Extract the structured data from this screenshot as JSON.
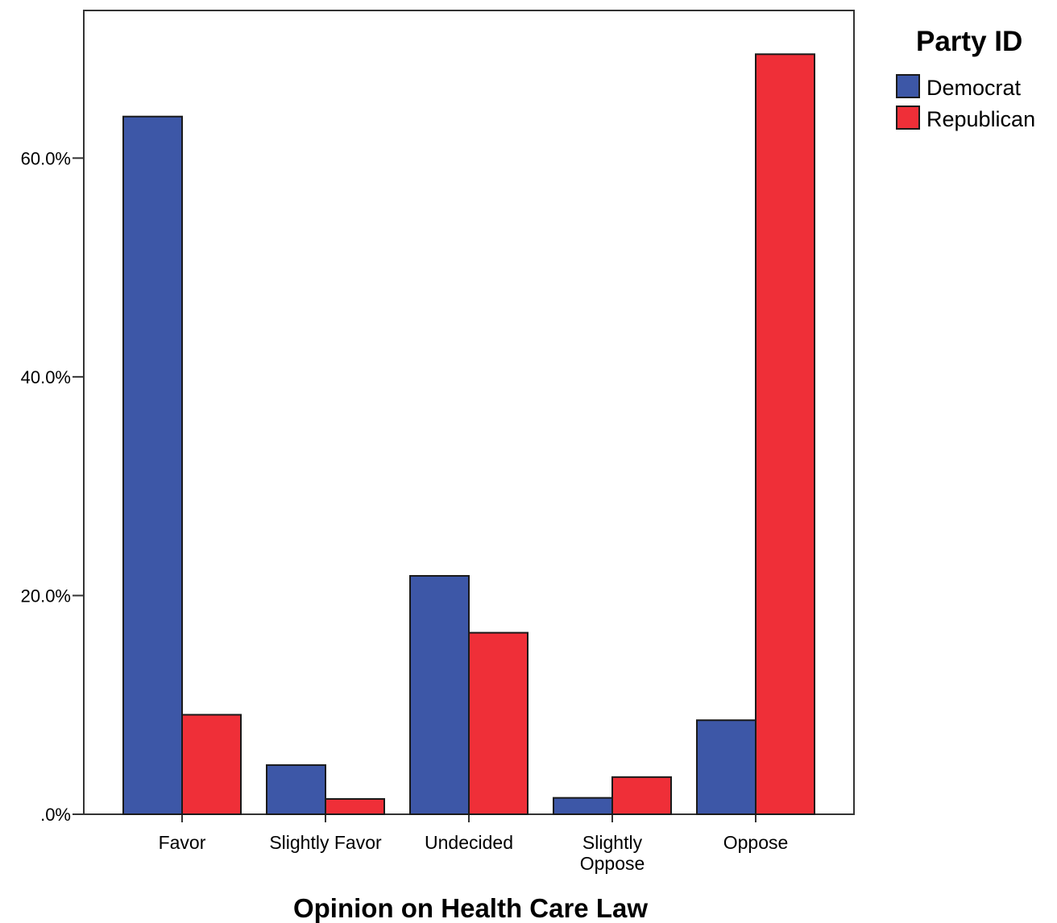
{
  "chart_data": {
    "type": "bar",
    "categories": [
      "Favor",
      "Slightly Favor",
      "Undecided",
      "Slightly Oppose",
      "Oppose"
    ],
    "category_display": [
      [
        "Favor"
      ],
      [
        "Slightly Favor"
      ],
      [
        "Undecided"
      ],
      [
        "Slightly",
        "Oppose"
      ],
      [
        "Oppose"
      ]
    ],
    "series": [
      {
        "name": "Democrat",
        "color": "#3d57a7",
        "values": [
          63.8,
          4.5,
          21.8,
          1.5,
          8.6
        ]
      },
      {
        "name": "Republican",
        "color": "#ef2f38",
        "values": [
          9.1,
          1.4,
          16.6,
          3.4,
          69.5
        ]
      }
    ],
    "title": "",
    "xlabel": "Opinion on Health Care Law",
    "ylabel": "",
    "ylim": [
      0,
      73.5
    ],
    "yticks": [
      0,
      20,
      40,
      60
    ],
    "ytick_labels": [
      ".0%",
      "20.0%",
      "40.0%",
      "60.0%"
    ],
    "legend": {
      "title": "Party ID",
      "position": "right"
    },
    "grid": false
  }
}
